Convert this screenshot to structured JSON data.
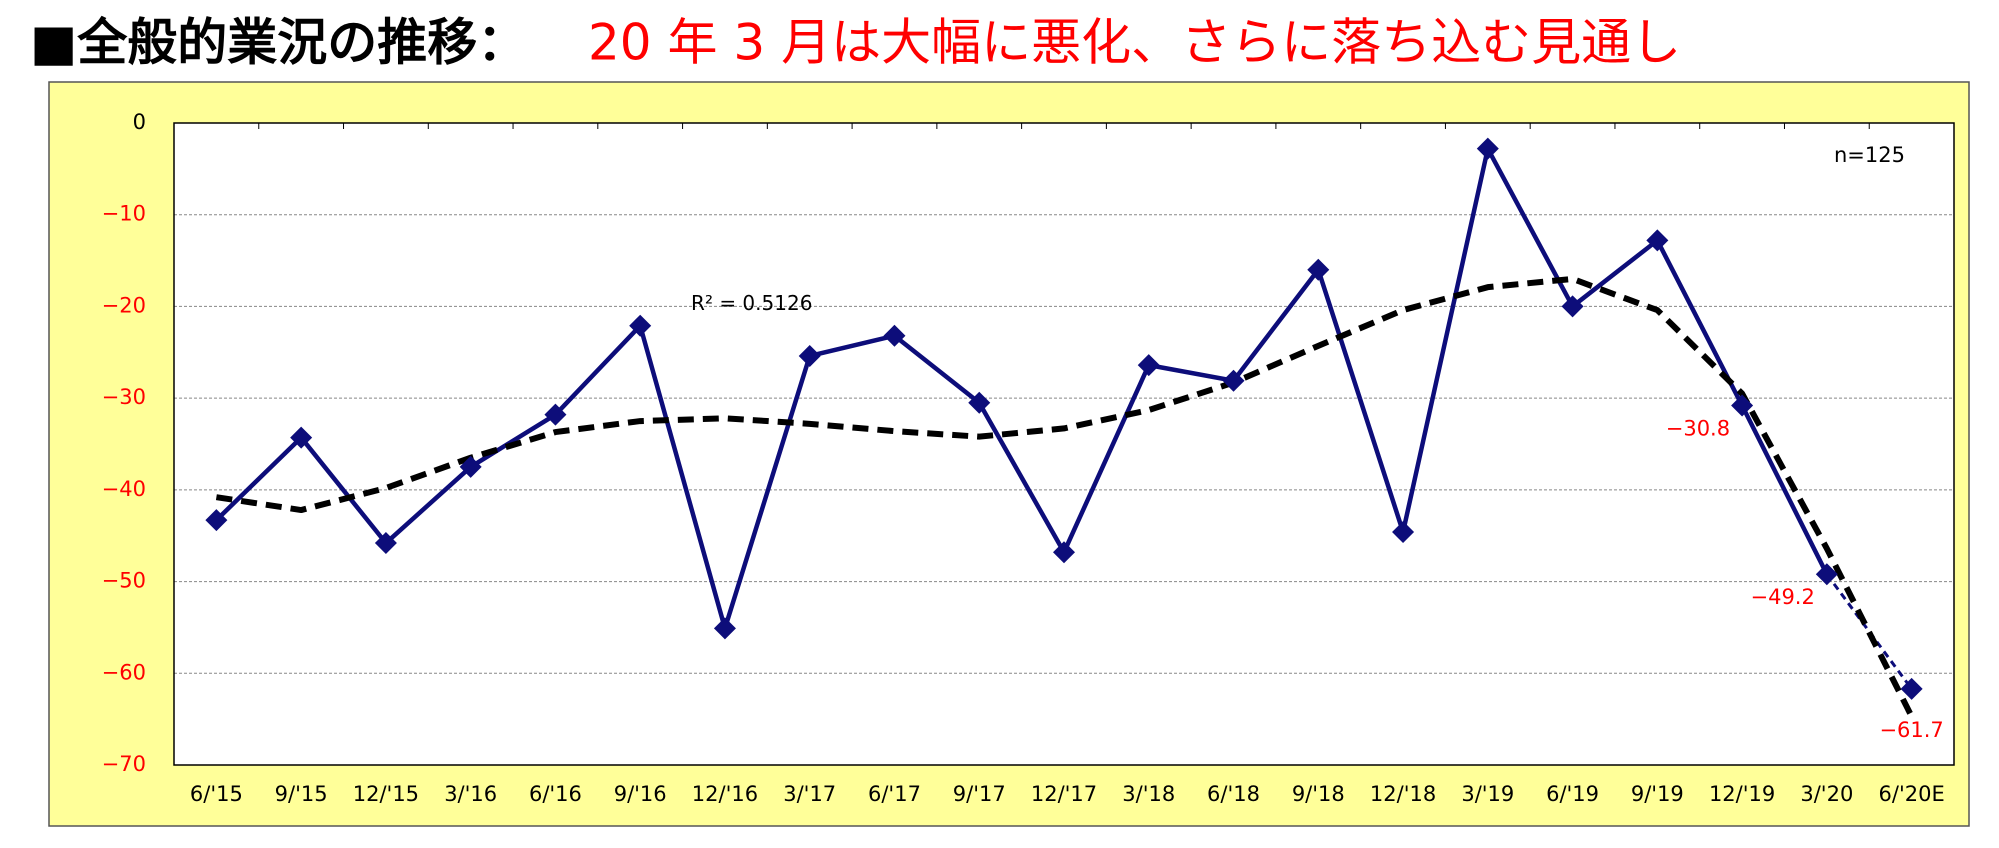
{
  "chart_data": {
    "type": "line",
    "title": "■全般的業況の推移：",
    "subtitle": "20 年 3 月は大幅に悪化、さらに落ち込む見通し",
    "annotation": "n=125",
    "categories": [
      "6/'15",
      "9/'15",
      "12/'15",
      "3/'16",
      "6/'16",
      "9/'16",
      "12/'16",
      "3/'17",
      "6/'17",
      "9/'17",
      "12/'17",
      "3/'18",
      "6/'18",
      "9/'18",
      "12/'18",
      "3/'19",
      "6/'19",
      "9/'19",
      "12/'19",
      "3/'20",
      "6/'20E"
    ],
    "series": [
      {
        "color": "#0d0d7a",
        "values": [
          -43.3,
          -34.3,
          -45.8,
          -37.5,
          -31.8,
          -22.1,
          -55.1,
          -25.4,
          -23.2,
          -30.5,
          -46.8,
          -26.4,
          -28.1,
          -16.0,
          -44.6,
          -2.8,
          -20.0,
          -12.8,
          -30.8,
          -49.2,
          -61.7
        ],
        "value_labels": [
          null,
          null,
          null,
          null,
          null,
          null,
          null,
          null,
          null,
          null,
          null,
          null,
          null,
          null,
          null,
          null,
          null,
          null,
          "−30.8",
          "−49.2",
          "−61.7"
        ],
        "dashed_last_segment": true
      }
    ],
    "trendline": {
      "color": "#000000",
      "label": "R² = 0.5126",
      "values": [
        -40.8,
        -42.2,
        -39.8,
        -36.5,
        -33.7,
        -32.5,
        -32.2,
        -32.8,
        -33.6,
        -34.2,
        -33.3,
        -31.3,
        -28.3,
        -24.3,
        -20.4,
        -17.9,
        -17.0,
        -20.4,
        -29.5,
        -46.4,
        -64.7
      ]
    },
    "ylim": [
      -70,
      0
    ],
    "yticks": [
      {
        "value": -70,
        "label": "−70"
      },
      {
        "value": -60,
        "label": "−60"
      },
      {
        "value": -50,
        "label": "−50"
      },
      {
        "value": -40,
        "label": "−40"
      },
      {
        "value": -30,
        "label": "−30"
      },
      {
        "value": -20,
        "label": "−20"
      },
      {
        "value": -10,
        "label": "−10"
      },
      0
    ],
    "grid": true
  }
}
